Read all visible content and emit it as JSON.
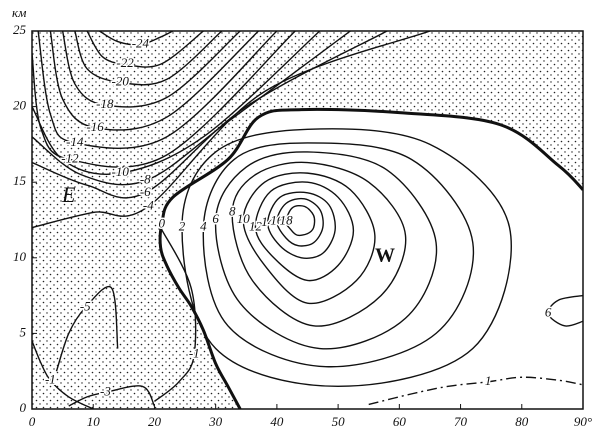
{
  "chart_data": {
    "type": "contour",
    "x_unit_label": "км",
    "xlim": [
      0,
      90
    ],
    "ylim": [
      0,
      25
    ],
    "xticks": [
      0,
      10,
      20,
      30,
      40,
      50,
      60,
      70,
      80,
      {
        "value": 90,
        "label": "90°"
      }
    ],
    "yticks": [
      0,
      5,
      10,
      15,
      20,
      25
    ],
    "stipple_negative": true,
    "annotations": [
      "E",
      "W"
    ],
    "contours": [
      {
        "level": -24,
        "x": [
          11,
          14,
          17.7,
          21,
          23
        ],
        "y": [
          25,
          24.3,
          24.1,
          24.6,
          25
        ]
      },
      {
        "level": -22,
        "x": [
          9,
          11.5,
          15.2,
          21,
          28
        ],
        "y": [
          25,
          23.3,
          22.8,
          22.8,
          25
        ]
      },
      {
        "level": -20,
        "x": [
          7,
          9,
          14.4,
          22,
          31
        ],
        "y": [
          25,
          22.5,
          21.6,
          21.8,
          25
        ]
      },
      {
        "level": -18,
        "x": [
          5,
          7,
          11.9,
          22,
          34
        ],
        "y": [
          25,
          21.5,
          20.1,
          20.6,
          25
        ]
      },
      {
        "level": -16,
        "x": [
          3,
          5,
          10.3,
          22,
          37
        ],
        "y": [
          25,
          20.5,
          18.6,
          19.3,
          25
        ]
      },
      {
        "level": -14,
        "x": [
          1,
          3,
          7,
          22,
          40
        ],
        "y": [
          25,
          19.5,
          17.6,
          18,
          25
        ]
      },
      {
        "level": -12,
        "x": [
          0,
          1.5,
          6.2,
          22,
          43
        ],
        "y": [
          23.5,
          18.5,
          16.5,
          16.8,
          25
        ]
      },
      {
        "level": -10,
        "x": [
          0,
          5,
          14.4,
          28,
          47
        ],
        "y": [
          20,
          16.5,
          15.6,
          18,
          25
        ]
      },
      {
        "level": -8,
        "x": [
          0,
          8,
          18.5,
          32,
          52
        ],
        "y": [
          18,
          15.5,
          15.1,
          19,
          25
        ]
      },
      {
        "level": -6,
        "x": [
          0,
          9,
          18.5,
          35,
          58
        ],
        "y": [
          16.3,
          14.8,
          14.3,
          20,
          25
        ]
      },
      {
        "level": -4,
        "x": [
          0,
          10,
          19,
          38,
          65
        ],
        "y": [
          12,
          13,
          13.4,
          21,
          25
        ]
      },
      {
        "level": -1,
        "x": [
          20,
          24,
          26.5,
          26,
          21
        ],
        "y": [
          0.5,
          1.8,
          3.6,
          8,
          12
        ]
      },
      {
        "level": -1,
        "x": [
          0,
          1.5,
          3,
          6,
          10
        ],
        "y": [
          4.5,
          3,
          1.9,
          0.8,
          0
        ]
      },
      {
        "level": -3,
        "x": [
          6,
          9,
          12,
          18,
          20
        ],
        "y": [
          0.2,
          0.8,
          1.1,
          1.5,
          0.2
        ]
      },
      {
        "level": -5,
        "x": [
          4,
          6,
          8.7,
          13,
          14
        ],
        "y": [
          2.5,
          5,
          6.7,
          8,
          4
        ]
      },
      {
        "level": 0,
        "bold": true,
        "x": [
          34,
          32,
          30,
          28,
          26,
          24,
          22,
          21,
          21.2,
          23,
          32,
          37,
          44,
          60,
          76.5,
          86,
          90
        ],
        "y": [
          0,
          1.5,
          3,
          5.2,
          6.8,
          8,
          9.5,
          10.7,
          12.2,
          14,
          16.5,
          19.3,
          19.8,
          19.6,
          18.8,
          16.1,
          14.5
        ]
      },
      {
        "level": 1,
        "style": "dashdot",
        "x": [
          55,
          62,
          68,
          74.5,
          80,
          86,
          90
        ],
        "y": [
          0.3,
          1.0,
          1.5,
          1.8,
          2.1,
          1.9,
          1.6
        ]
      },
      {
        "level": 6,
        "x": [
          90,
          86,
          84.3,
          87,
          90
        ],
        "y": [
          7.5,
          7.2,
          6.3,
          5.5,
          5.8
        ]
      },
      {
        "level": 2,
        "closed": true,
        "x": [
          24.5,
          30,
          45,
          65,
          78,
          72,
          50,
          30
        ],
        "y": [
          12,
          17,
          18.5,
          17.5,
          12,
          4,
          1.5,
          4
        ]
      },
      {
        "level": 4,
        "closed": true,
        "x": [
          28,
          33,
          45,
          62,
          72,
          66,
          48,
          32
        ],
        "y": [
          12,
          16.5,
          17.6,
          16.5,
          11,
          5,
          2.8,
          5.5
        ]
      },
      {
        "level": 6,
        "closed": true,
        "x": [
          30,
          35,
          45,
          58,
          66,
          61,
          47,
          34
        ],
        "y": [
          12.5,
          16,
          17,
          15.8,
          11,
          6,
          4,
          7
        ]
      },
      {
        "level": 8,
        "closed": true,
        "x": [
          32.7,
          36.5,
          45,
          55,
          61,
          57,
          46,
          36
        ],
        "y": [
          13,
          15.5,
          16.3,
          15,
          11.5,
          7.5,
          5.5,
          8.5
        ]
      },
      {
        "level": 10,
        "closed": true,
        "x": [
          34.5,
          38,
          45,
          52,
          56,
          53,
          45,
          38
        ],
        "y": [
          12.5,
          15,
          15.6,
          14.5,
          11.5,
          8.5,
          7,
          9.5
        ]
      },
      {
        "level": 12,
        "closed": true,
        "x": [
          36.5,
          39,
          45,
          50,
          52.5,
          50,
          45,
          39.5
        ],
        "y": [
          12,
          14.4,
          15,
          14,
          11.8,
          9.5,
          8.5,
          10
        ]
      },
      {
        "level": 14,
        "closed": true,
        "x": [
          38.5,
          40.5,
          45,
          48.5,
          49.5,
          47.5,
          44,
          40.5
        ],
        "y": [
          12.3,
          14,
          14.3,
          13.5,
          11.8,
          10.3,
          10,
          10.8
        ]
      },
      {
        "level": 16,
        "closed": true,
        "x": [
          40,
          41.5,
          44.5,
          47,
          47.5,
          46,
          43.5,
          41.5
        ],
        "y": [
          12.4,
          13.6,
          13.9,
          13.2,
          12,
          11,
          10.8,
          11.3
        ]
      },
      {
        "level": 18,
        "closed": true,
        "x": [
          41.5,
          42.5,
          44.5,
          46,
          46,
          45,
          43.3,
          42.2
        ],
        "y": [
          12.4,
          13.3,
          13.4,
          12.8,
          12,
          11.6,
          11.5,
          11.9
        ]
      }
    ]
  }
}
